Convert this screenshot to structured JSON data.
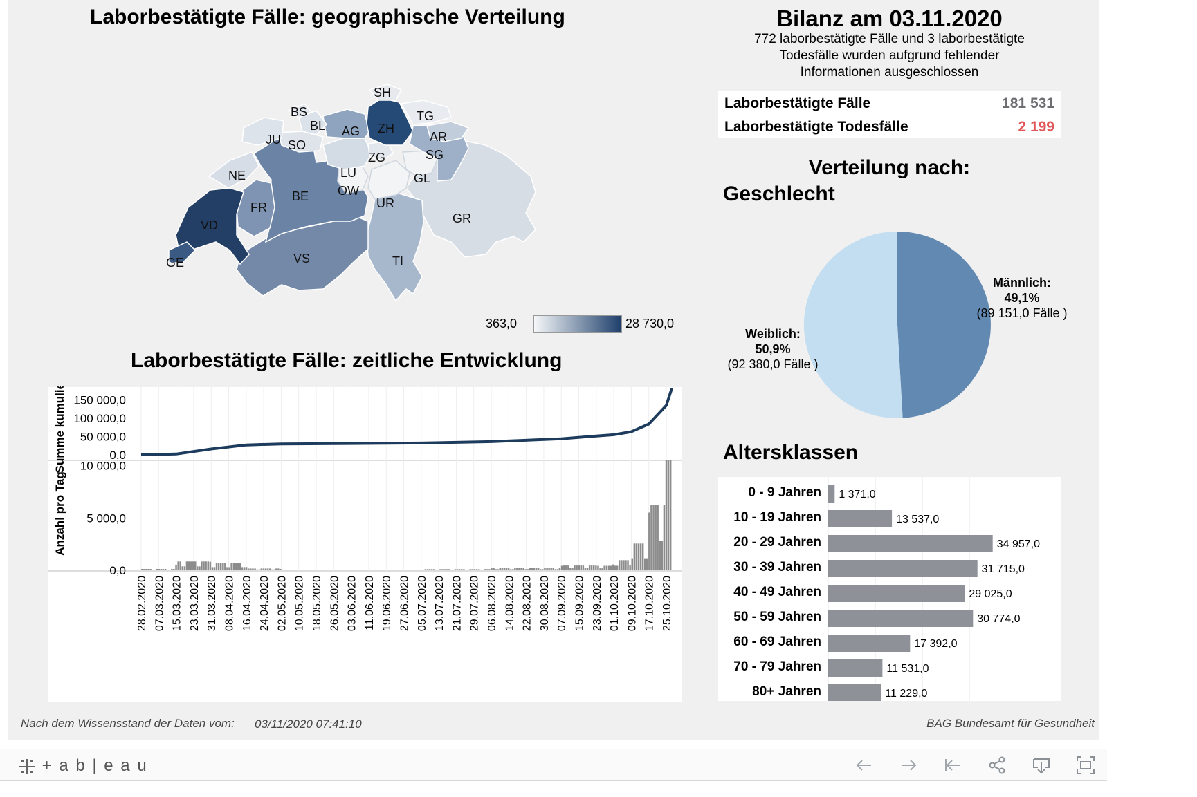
{
  "map": {
    "title": "Laborbestätigte Fälle: geographische Verteilung",
    "legend_min": "363,0",
    "legend_max": "28 730,0",
    "colors": {
      "light": "#dde3ea",
      "dark": "#1e3f6b"
    },
    "cantons": [
      "SH",
      "BS",
      "BL",
      "TG",
      "AG",
      "ZH",
      "JU",
      "AR",
      "SO",
      "SG",
      "ZG",
      "LU",
      "NE",
      "GL",
      "BE",
      "OW",
      "FR",
      "UR",
      "GR",
      "VD",
      "VS",
      "TI",
      "GE"
    ]
  },
  "timeline": {
    "title": "Laborbestätigte Fälle: zeitliche Entwicklung",
    "top_ylabel": "Summe kumuliert",
    "bottom_ylabel": "Anzahl pro Tag",
    "top_ticks": [
      "150 000,0",
      "100 000,0",
      "50 000,0",
      "0,0"
    ],
    "bottom_ticks": [
      "10 000,0",
      "5 000,0",
      "0,0"
    ],
    "dates": [
      "28.02.2020",
      "07.03.2020",
      "15.03.2020",
      "23.03.2020",
      "31.03.2020",
      "08.04.2020",
      "16.04.2020",
      "24.04.2020",
      "02.05.2020",
      "10.05.2020",
      "18.05.2020",
      "26.05.2020",
      "03.06.2020",
      "11.06.2020",
      "19.06.2020",
      "27.06.2020",
      "05.07.2020",
      "13.07.2020",
      "21.07.2020",
      "29.07.2020",
      "06.08.2020",
      "14.08.2020",
      "22.08.2020",
      "30.08.2020",
      "07.09.2020",
      "15.09.2020",
      "23.09.2020",
      "01.10.2020",
      "09.10.2020",
      "17.10.2020",
      "25.10.2020"
    ],
    "line_color": "#1d3b5c",
    "bar_color": "#8c8c8c"
  },
  "bilanz": {
    "title": "Bilanz am 03.11.2020",
    "note_lines": [
      "772 laborbestätigte Fälle und 3 laborbestätigte",
      "Todesfälle wurden aufgrund fehlender",
      "Informationen ausgeschlossen"
    ],
    "rows": [
      {
        "label": "Laborbestätigte Fälle",
        "value": "181 531",
        "color": "#6d6e71"
      },
      {
        "label": "Laborbestätigte Todesfälle",
        "value": "2 199",
        "color": "#e15759"
      }
    ]
  },
  "gender": {
    "title": "Verteilung nach:",
    "subtitle": "Geschlecht",
    "male": {
      "label": "Männlich:",
      "pct": "49,1%",
      "count": "(89 151,0 Fälle )",
      "value": 49.1,
      "color": "#6289b2"
    },
    "female": {
      "label": "Weiblich:",
      "pct": "50,9%",
      "count": "(92 380,0 Fälle )",
      "value": 50.9,
      "color": "#c3def0"
    }
  },
  "age": {
    "title": "Altersklassen",
    "bar_color": "#8e9298",
    "classes": [
      {
        "label": "0 - 9 Jahren",
        "value": 1371,
        "text": "1 371,0"
      },
      {
        "label": "10 - 19 Jahren",
        "value": 13537,
        "text": "13 537,0"
      },
      {
        "label": "20 - 29 Jahren",
        "value": 34957,
        "text": "34 957,0"
      },
      {
        "label": "30 - 39 Jahren",
        "value": 31715,
        "text": "31 715,0"
      },
      {
        "label": "40 - 49 Jahren",
        "value": 29025,
        "text": "29 025,0"
      },
      {
        "label": "50 - 59 Jahren",
        "value": 30774,
        "text": "30 774,0"
      },
      {
        "label": "60 - 69 Jahren",
        "value": 17392,
        "text": "17 392,0"
      },
      {
        "label": "70 - 79 Jahren",
        "value": 11531,
        "text": "11 531,0"
      },
      {
        "label": "80+ Jahren",
        "value": 11229,
        "text": "11 229,0"
      }
    ]
  },
  "footer": {
    "stand_label": "Nach dem Wissensstand der Daten vom:",
    "stand_value": "03/11/2020 07:41:10",
    "source": "BAG Bundesamt für Gesundheit"
  },
  "toolbar": {
    "logo": "+ a b | e a u",
    "icons": [
      "undo-icon",
      "redo-icon",
      "revert-icon",
      "share-icon",
      "download-icon",
      "fullscreen-icon"
    ]
  },
  "chart_data": [
    {
      "type": "line",
      "title": "Laborbestätigte Fälle: zeitliche Entwicklung",
      "ylabel": "Summe kumuliert",
      "ylim": [
        0,
        185000
      ],
      "x": [
        "28.02.2020",
        "15.03.2020",
        "31.03.2020",
        "16.04.2020",
        "02.05.2020",
        "03.06.2020",
        "05.07.2020",
        "06.08.2020",
        "07.09.2020",
        "23.09.2020",
        "01.10.2020",
        "09.10.2020",
        "17.10.2020",
        "25.10.2020",
        "03.11.2020"
      ],
      "y": [
        20,
        2200,
        16000,
        27000,
        29800,
        30900,
        32300,
        36000,
        44000,
        51500,
        55000,
        63000,
        84000,
        135000,
        181531
      ]
    },
    {
      "type": "bar",
      "title": "Laborbestätigte Fälle: zeitliche Entwicklung",
      "ylabel": "Anzahl pro Tag",
      "ylim": [
        0,
        10500
      ]
    },
    {
      "type": "pie",
      "title": "Verteilung nach: Geschlecht",
      "categories": [
        "Männlich",
        "Weiblich"
      ],
      "values": [
        49.1,
        50.9
      ]
    },
    {
      "type": "bar",
      "title": "Altersklassen",
      "categories": [
        "0 - 9 Jahren",
        "10 - 19 Jahren",
        "20 - 29 Jahren",
        "30 - 39 Jahren",
        "40 - 49 Jahren",
        "50 - 59 Jahren",
        "60 - 69 Jahren",
        "70 - 79 Jahren",
        "80+ Jahren"
      ],
      "values": [
        1371,
        13537,
        34957,
        31715,
        29025,
        30774,
        17392,
        11531,
        11229
      ]
    }
  ]
}
